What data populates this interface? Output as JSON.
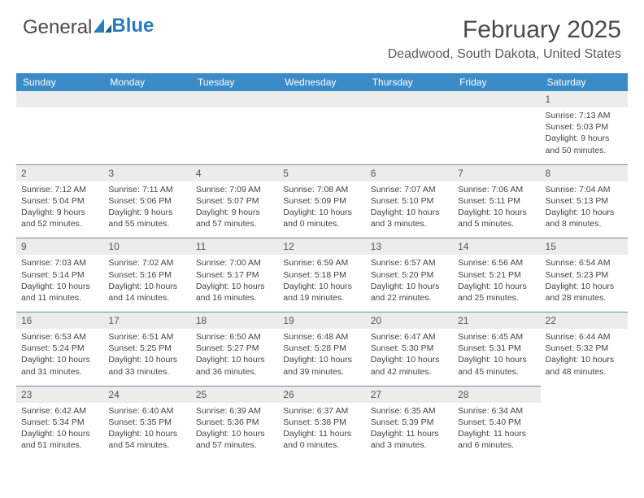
{
  "logo": {
    "word1": "General",
    "word2": "Blue"
  },
  "title": "February 2025",
  "location": "Deadwood, South Dakota, United States",
  "colors": {
    "header_bg": "#3b8bc9",
    "header_text": "#ffffff",
    "daynum_bg": "#ececec",
    "row_border": "#6a8aa8",
    "logo_blue": "#2b7bbf",
    "text": "#333333",
    "background": "#ffffff"
  },
  "dayNames": [
    "Sunday",
    "Monday",
    "Tuesday",
    "Wednesday",
    "Thursday",
    "Friday",
    "Saturday"
  ],
  "weeks": [
    [
      {
        "num": "",
        "sunrise": "",
        "sunset": "",
        "daylight": ""
      },
      {
        "num": "",
        "sunrise": "",
        "sunset": "",
        "daylight": ""
      },
      {
        "num": "",
        "sunrise": "",
        "sunset": "",
        "daylight": ""
      },
      {
        "num": "",
        "sunrise": "",
        "sunset": "",
        "daylight": ""
      },
      {
        "num": "",
        "sunrise": "",
        "sunset": "",
        "daylight": ""
      },
      {
        "num": "",
        "sunrise": "",
        "sunset": "",
        "daylight": ""
      },
      {
        "num": "1",
        "sunrise": "Sunrise: 7:13 AM",
        "sunset": "Sunset: 5:03 PM",
        "daylight": "Daylight: 9 hours and 50 minutes."
      }
    ],
    [
      {
        "num": "2",
        "sunrise": "Sunrise: 7:12 AM",
        "sunset": "Sunset: 5:04 PM",
        "daylight": "Daylight: 9 hours and 52 minutes."
      },
      {
        "num": "3",
        "sunrise": "Sunrise: 7:11 AM",
        "sunset": "Sunset: 5:06 PM",
        "daylight": "Daylight: 9 hours and 55 minutes."
      },
      {
        "num": "4",
        "sunrise": "Sunrise: 7:09 AM",
        "sunset": "Sunset: 5:07 PM",
        "daylight": "Daylight: 9 hours and 57 minutes."
      },
      {
        "num": "5",
        "sunrise": "Sunrise: 7:08 AM",
        "sunset": "Sunset: 5:09 PM",
        "daylight": "Daylight: 10 hours and 0 minutes."
      },
      {
        "num": "6",
        "sunrise": "Sunrise: 7:07 AM",
        "sunset": "Sunset: 5:10 PM",
        "daylight": "Daylight: 10 hours and 3 minutes."
      },
      {
        "num": "7",
        "sunrise": "Sunrise: 7:06 AM",
        "sunset": "Sunset: 5:11 PM",
        "daylight": "Daylight: 10 hours and 5 minutes."
      },
      {
        "num": "8",
        "sunrise": "Sunrise: 7:04 AM",
        "sunset": "Sunset: 5:13 PM",
        "daylight": "Daylight: 10 hours and 8 minutes."
      }
    ],
    [
      {
        "num": "9",
        "sunrise": "Sunrise: 7:03 AM",
        "sunset": "Sunset: 5:14 PM",
        "daylight": "Daylight: 10 hours and 11 minutes."
      },
      {
        "num": "10",
        "sunrise": "Sunrise: 7:02 AM",
        "sunset": "Sunset: 5:16 PM",
        "daylight": "Daylight: 10 hours and 14 minutes."
      },
      {
        "num": "11",
        "sunrise": "Sunrise: 7:00 AM",
        "sunset": "Sunset: 5:17 PM",
        "daylight": "Daylight: 10 hours and 16 minutes."
      },
      {
        "num": "12",
        "sunrise": "Sunrise: 6:59 AM",
        "sunset": "Sunset: 5:18 PM",
        "daylight": "Daylight: 10 hours and 19 minutes."
      },
      {
        "num": "13",
        "sunrise": "Sunrise: 6:57 AM",
        "sunset": "Sunset: 5:20 PM",
        "daylight": "Daylight: 10 hours and 22 minutes."
      },
      {
        "num": "14",
        "sunrise": "Sunrise: 6:56 AM",
        "sunset": "Sunset: 5:21 PM",
        "daylight": "Daylight: 10 hours and 25 minutes."
      },
      {
        "num": "15",
        "sunrise": "Sunrise: 6:54 AM",
        "sunset": "Sunset: 5:23 PM",
        "daylight": "Daylight: 10 hours and 28 minutes."
      }
    ],
    [
      {
        "num": "16",
        "sunrise": "Sunrise: 6:53 AM",
        "sunset": "Sunset: 5:24 PM",
        "daylight": "Daylight: 10 hours and 31 minutes."
      },
      {
        "num": "17",
        "sunrise": "Sunrise: 6:51 AM",
        "sunset": "Sunset: 5:25 PM",
        "daylight": "Daylight: 10 hours and 33 minutes."
      },
      {
        "num": "18",
        "sunrise": "Sunrise: 6:50 AM",
        "sunset": "Sunset: 5:27 PM",
        "daylight": "Daylight: 10 hours and 36 minutes."
      },
      {
        "num": "19",
        "sunrise": "Sunrise: 6:48 AM",
        "sunset": "Sunset: 5:28 PM",
        "daylight": "Daylight: 10 hours and 39 minutes."
      },
      {
        "num": "20",
        "sunrise": "Sunrise: 6:47 AM",
        "sunset": "Sunset: 5:30 PM",
        "daylight": "Daylight: 10 hours and 42 minutes."
      },
      {
        "num": "21",
        "sunrise": "Sunrise: 6:45 AM",
        "sunset": "Sunset: 5:31 PM",
        "daylight": "Daylight: 10 hours and 45 minutes."
      },
      {
        "num": "22",
        "sunrise": "Sunrise: 6:44 AM",
        "sunset": "Sunset: 5:32 PM",
        "daylight": "Daylight: 10 hours and 48 minutes."
      }
    ],
    [
      {
        "num": "23",
        "sunrise": "Sunrise: 6:42 AM",
        "sunset": "Sunset: 5:34 PM",
        "daylight": "Daylight: 10 hours and 51 minutes."
      },
      {
        "num": "24",
        "sunrise": "Sunrise: 6:40 AM",
        "sunset": "Sunset: 5:35 PM",
        "daylight": "Daylight: 10 hours and 54 minutes."
      },
      {
        "num": "25",
        "sunrise": "Sunrise: 6:39 AM",
        "sunset": "Sunset: 5:36 PM",
        "daylight": "Daylight: 10 hours and 57 minutes."
      },
      {
        "num": "26",
        "sunrise": "Sunrise: 6:37 AM",
        "sunset": "Sunset: 5:38 PM",
        "daylight": "Daylight: 11 hours and 0 minutes."
      },
      {
        "num": "27",
        "sunrise": "Sunrise: 6:35 AM",
        "sunset": "Sunset: 5:39 PM",
        "daylight": "Daylight: 11 hours and 3 minutes."
      },
      {
        "num": "28",
        "sunrise": "Sunrise: 6:34 AM",
        "sunset": "Sunset: 5:40 PM",
        "daylight": "Daylight: 11 hours and 6 minutes."
      },
      {
        "num": "",
        "sunrise": "",
        "sunset": "",
        "daylight": ""
      }
    ]
  ]
}
